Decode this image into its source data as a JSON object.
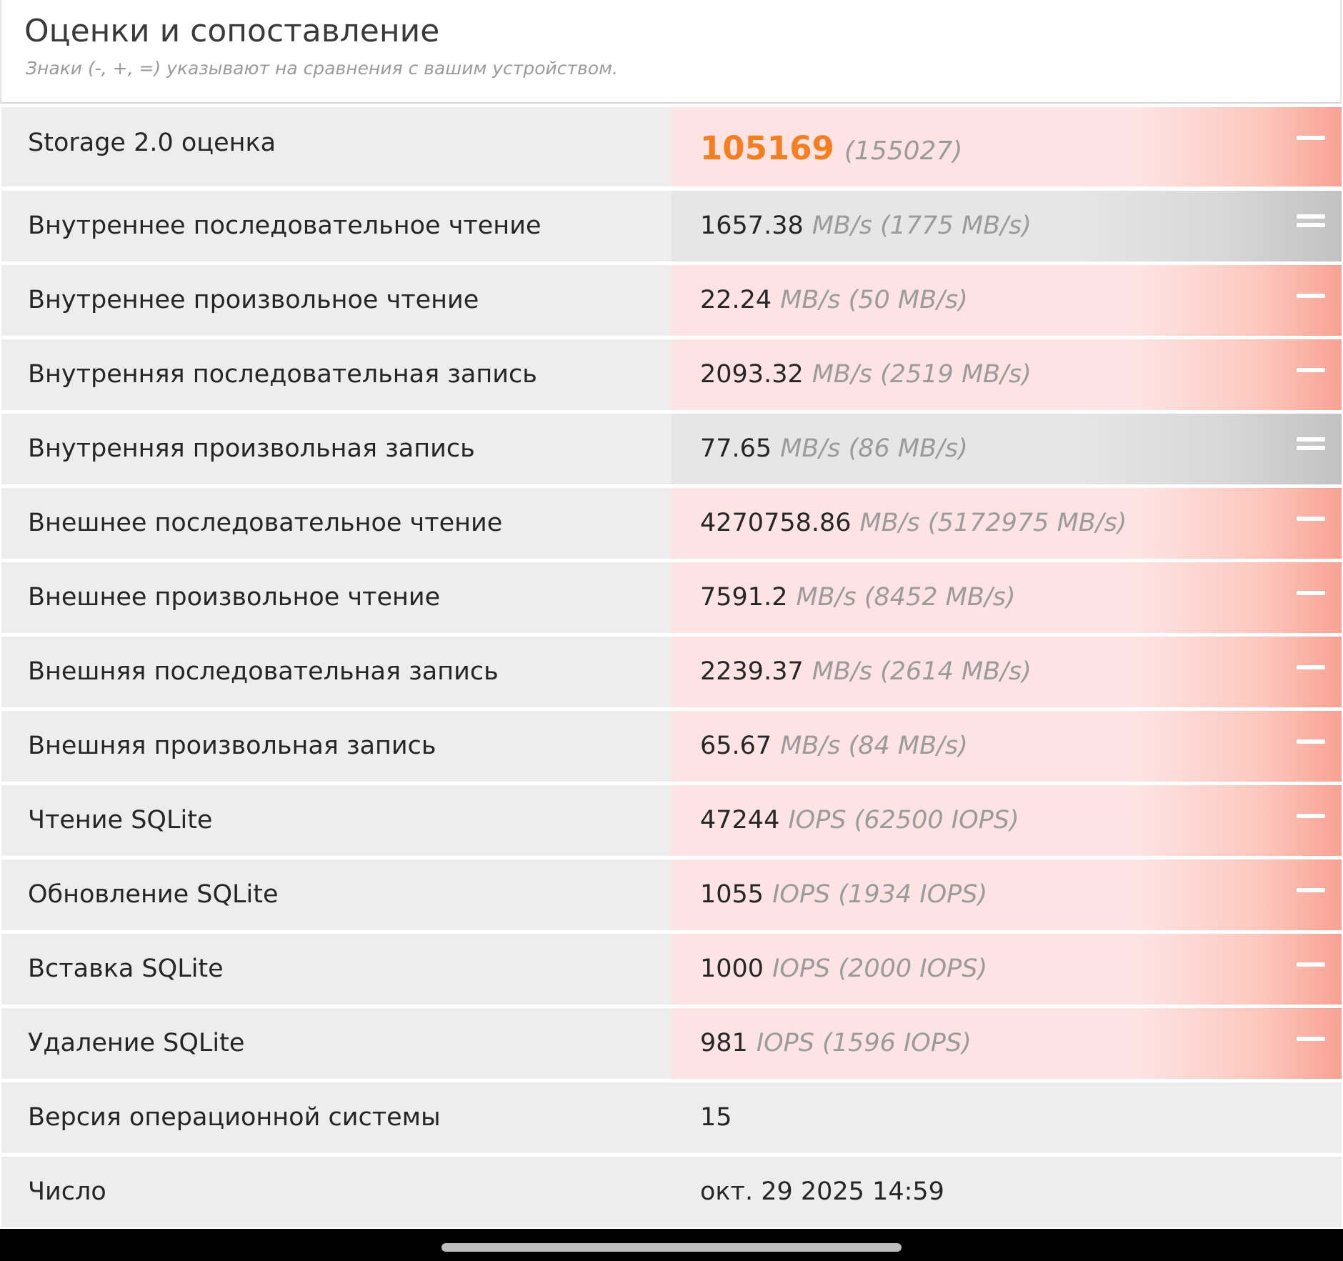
{
  "header": {
    "title": "Оценки и сопоставление",
    "subtitle": "Знаки (-, +, =) указывают на сравнения с вашим устройством."
  },
  "rows": [
    {
      "label": "Storage 2.0 оценка",
      "value": "105169",
      "ref": "(155027)",
      "sign": "minus"
    },
    {
      "label": "Внутреннее последовательное чтение",
      "value": "1657.38",
      "ref": "MB/s (1775 MB/s)",
      "sign": "equal"
    },
    {
      "label": "Внутреннее произвольное чтение",
      "value": "22.24",
      "ref": "MB/s (50 MB/s)",
      "sign": "minus"
    },
    {
      "label": "Внутренняя последовательная запись",
      "value": "2093.32",
      "ref": "MB/s (2519 MB/s)",
      "sign": "minus"
    },
    {
      "label": "Внутренняя произвольная запись",
      "value": "77.65",
      "ref": "MB/s (86 MB/s)",
      "sign": "equal"
    },
    {
      "label": "Внешнее последовательное чтение",
      "value": "4270758.86",
      "ref": "MB/s (5172975 MB/s)",
      "sign": "minus"
    },
    {
      "label": "Внешнее произвольное чтение",
      "value": "7591.2",
      "ref": "MB/s (8452 MB/s)",
      "sign": "minus"
    },
    {
      "label": "Внешняя последовательная запись",
      "value": "2239.37",
      "ref": "MB/s (2614 MB/s)",
      "sign": "minus"
    },
    {
      "label": "Внешняя произвольная запись",
      "value": "65.67",
      "ref": "MB/s (84 MB/s)",
      "sign": "minus"
    },
    {
      "label": "Чтение SQLite",
      "value": "47244",
      "ref": "IOPS (62500 IOPS)",
      "sign": "minus"
    },
    {
      "label": "Обновление SQLite",
      "value": "1055",
      "ref": "IOPS (1934 IOPS)",
      "sign": "minus"
    },
    {
      "label": "Вставка SQLite",
      "value": "1000",
      "ref": "IOPS (2000 IOPS)",
      "sign": "minus"
    },
    {
      "label": "Удаление SQLite",
      "value": "981",
      "ref": "IOPS (1596 IOPS)",
      "sign": "minus"
    },
    {
      "label": "Версия операционной системы",
      "value": "15",
      "ref": "",
      "sign": "none"
    },
    {
      "label": "Число",
      "value": "окт. 29 2025 14:59",
      "ref": "",
      "sign": "none"
    }
  ],
  "colors": {
    "score": "#f57f20",
    "worse_bg": "#fde3e3",
    "worse_edge": "#f9a293",
    "equal_bg": "#e6e6e6",
    "equal_edge": "#c2c2c2"
  }
}
